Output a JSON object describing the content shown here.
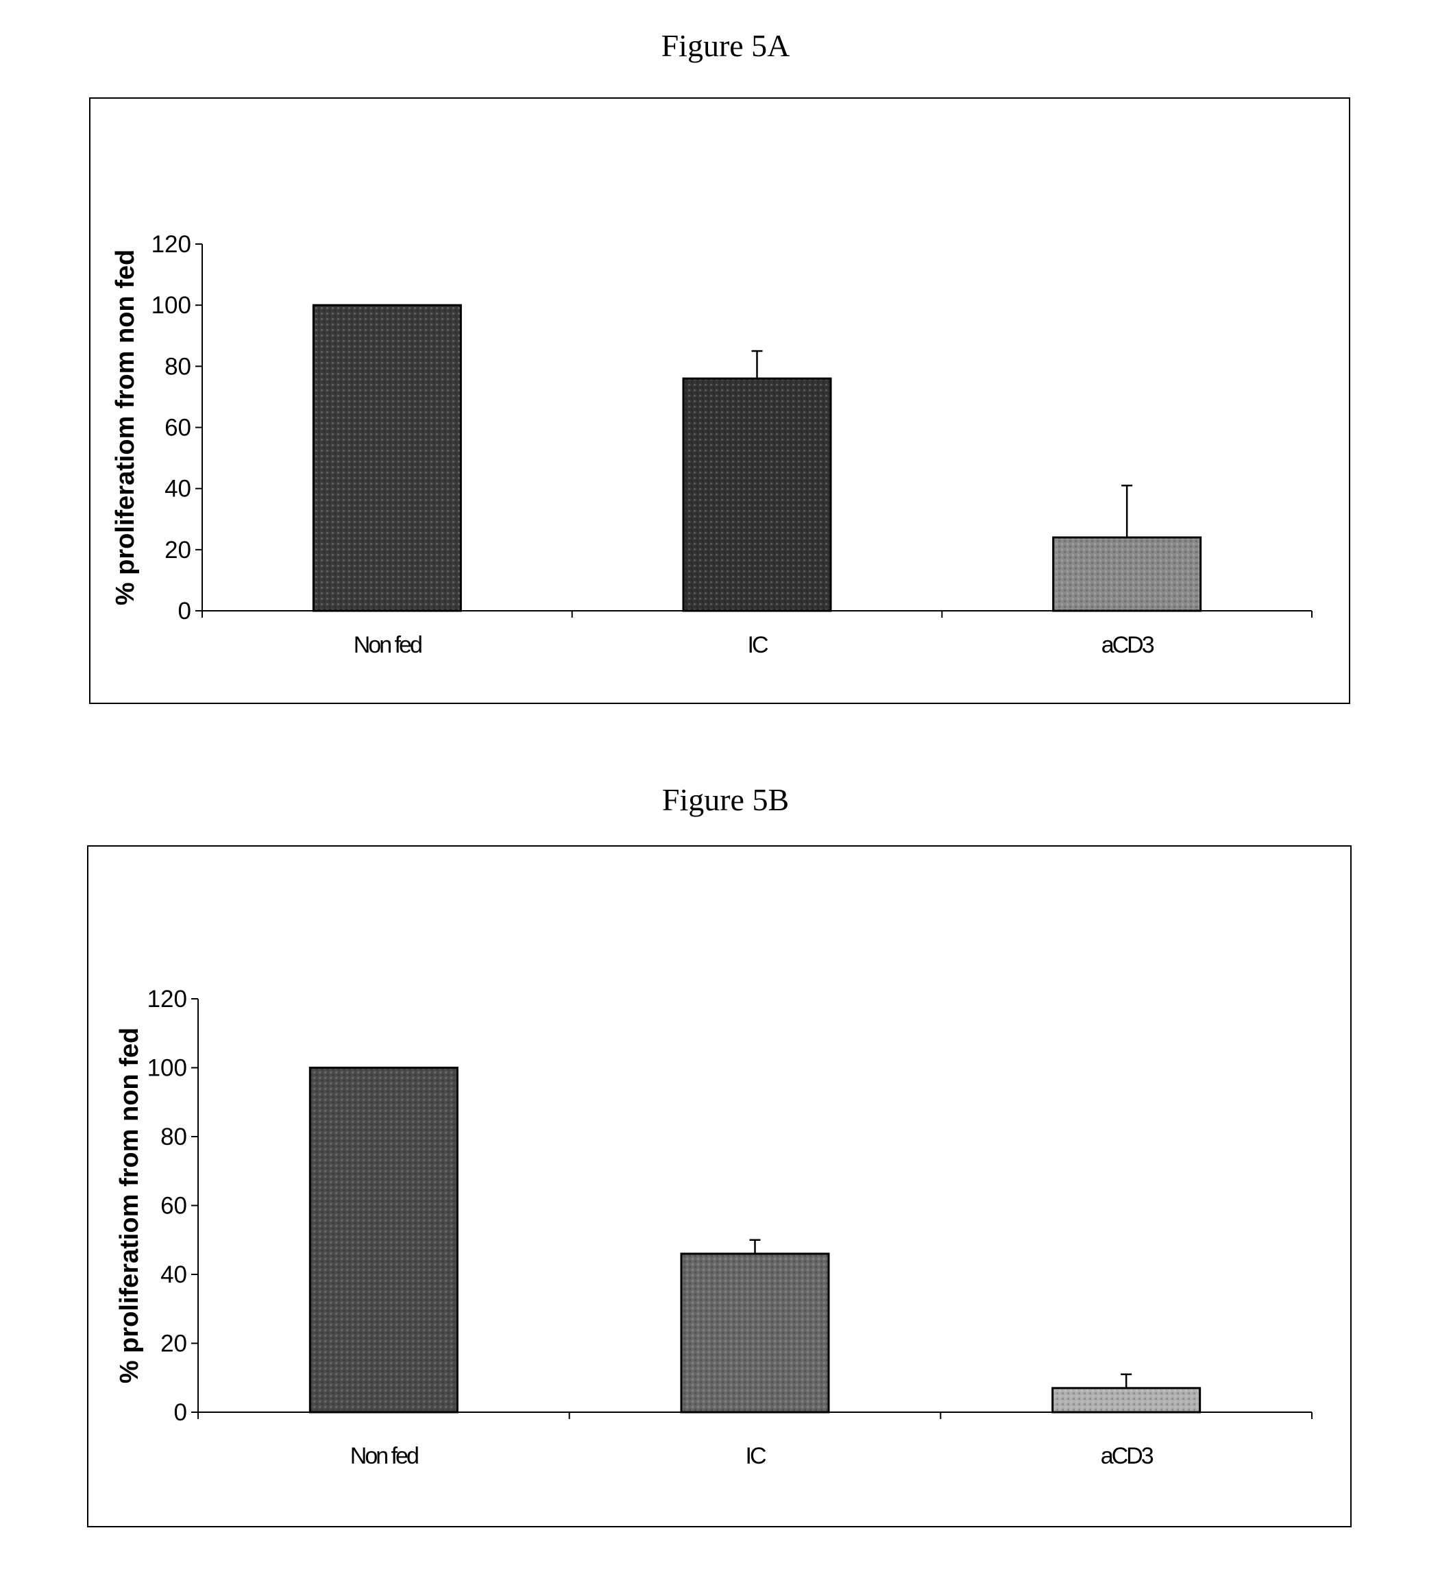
{
  "figures": [
    {
      "title": "Figure 5A"
    },
    {
      "title": "Figure 5B"
    }
  ],
  "chart_data": [
    {
      "type": "bar",
      "title": "Figure 5A",
      "xlabel": "",
      "ylabel": "% proliferatiom from non fed",
      "categories": [
        "Non fed",
        "IC",
        "aCD3"
      ],
      "values": [
        100,
        76,
        24
      ],
      "error_upper": [
        0,
        9,
        17
      ],
      "bar_colors": [
        "#3a3a3a",
        "#333333",
        "#8a8a8a"
      ],
      "ylim": [
        0,
        120
      ],
      "yticks": [
        0,
        20,
        40,
        60,
        80,
        100,
        120
      ],
      "grid": false,
      "legend": "none"
    },
    {
      "type": "bar",
      "title": "Figure 5B",
      "xlabel": "",
      "ylabel": "% proliferatiom from non fed",
      "categories": [
        "Non fed",
        "IC",
        "aCD3"
      ],
      "values": [
        100,
        46,
        7
      ],
      "error_upper": [
        0,
        4,
        4
      ],
      "bar_colors": [
        "#4a4a4a",
        "#666666",
        "#b0b0b0"
      ],
      "ylim": [
        0,
        120
      ],
      "yticks": [
        0,
        20,
        40,
        60,
        80,
        100,
        120
      ],
      "grid": false,
      "legend": "none"
    }
  ]
}
